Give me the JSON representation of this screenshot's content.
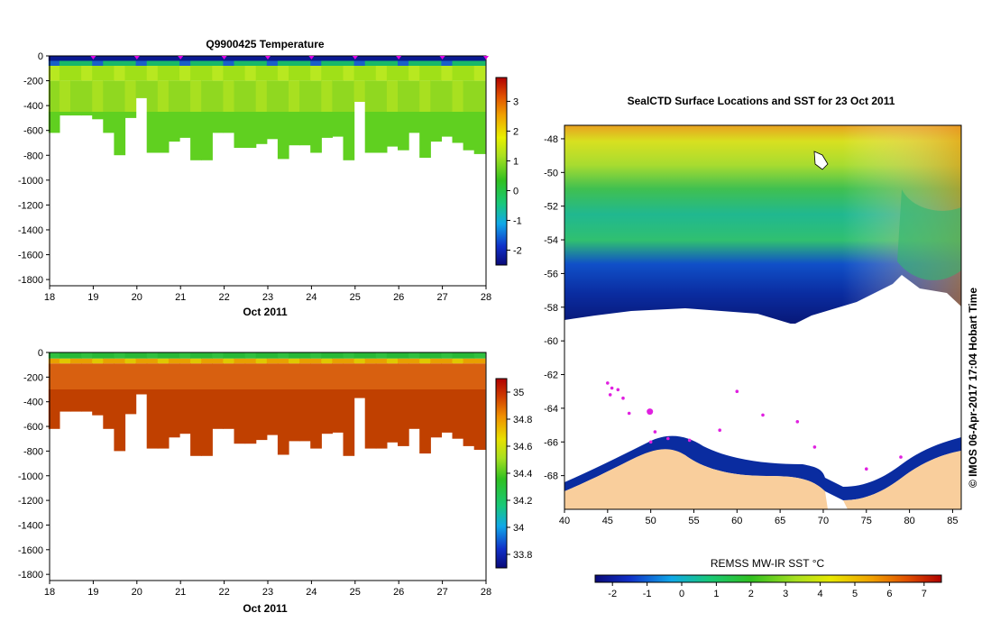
{
  "temperature_panel": {
    "title": "Q9900425  Temperature",
    "xlabel": "Oct 2011",
    "x_ticks": [
      "18",
      "19",
      "20",
      "21",
      "22",
      "23",
      "24",
      "25",
      "26",
      "27",
      "28"
    ],
    "y_ticks": [
      "0",
      "-200",
      "-400",
      "-600",
      "-800",
      "-1000",
      "-1200",
      "-1400",
      "-1600",
      "-1800"
    ],
    "colorbar_ticks": [
      "3",
      "2",
      "1",
      "0",
      "-1",
      "-2"
    ]
  },
  "salinity_panel": {
    "xlabel": "Oct 2011",
    "x_ticks": [
      "18",
      "19",
      "20",
      "21",
      "22",
      "23",
      "24",
      "25",
      "26",
      "27",
      "28"
    ],
    "y_ticks": [
      "0",
      "-200",
      "-400",
      "-600",
      "-800",
      "-1000",
      "-1200",
      "-1400",
      "-1600",
      "-1800"
    ],
    "colorbar_ticks": [
      "35",
      "34.8",
      "34.6",
      "34.4",
      "34.2",
      "34",
      "33.8"
    ]
  },
  "map_panel": {
    "title": "SealCTD Surface Locations and SST for 23 Oct 2011",
    "lat_ticks": [
      "-48",
      "-50",
      "-52",
      "-54",
      "-56",
      "-58",
      "-60",
      "-62",
      "-64",
      "-66",
      "-68"
    ],
    "lon_ticks": [
      "40",
      "45",
      "50",
      "55",
      "60",
      "65",
      "70",
      "75",
      "80",
      "85"
    ],
    "credit": "©  IMOS 06-Apr-2017 17:04 Hobart Time",
    "colorbar_title": "REMSS MW-IR SST °C",
    "colorbar_ticks": [
      "-2",
      "-1",
      "0",
      "1",
      "2",
      "3",
      "4",
      "5",
      "6",
      "7"
    ]
  },
  "chart_data": [
    {
      "type": "heatmap",
      "title": "Q9900425  Temperature",
      "xlabel": "Oct 2011",
      "ylabel": "",
      "xlim": [
        18,
        28
      ],
      "ylim": [
        -1850,
        0
      ],
      "colorbar_range": [
        -2.5,
        3.8
      ],
      "profile_days": [
        18.1,
        18.35,
        18.6,
        18.85,
        19.1,
        19.35,
        19.6,
        19.85,
        20.1,
        20.35,
        20.6,
        20.85,
        21.1,
        21.35,
        21.6,
        21.85,
        22.1,
        22.35,
        22.6,
        22.85,
        23.1,
        23.35,
        23.6,
        23.85,
        24.1,
        24.35,
        24.6,
        24.85,
        25.1,
        25.35,
        25.6,
        25.85,
        26.1,
        26.35,
        26.6,
        26.85,
        27.1,
        27.35,
        27.6,
        27.85
      ],
      "max_depths": [
        -620,
        -480,
        -480,
        -480,
        -510,
        -620,
        -800,
        -500,
        -340,
        -780,
        -780,
        -690,
        -660,
        -840,
        -840,
        -620,
        -620,
        -740,
        -740,
        -710,
        -670,
        -830,
        -720,
        -720,
        -780,
        -660,
        -650,
        -840,
        -370,
        -780,
        -780,
        -730,
        -760,
        -620,
        -820,
        -690,
        -650,
        -700,
        -760,
        -790
      ],
      "surface_value": -2.0,
      "deep_value": 1.2,
      "surface_markers_days": [
        19,
        20,
        21,
        22,
        23,
        24,
        25,
        26,
        27,
        28
      ]
    },
    {
      "type": "heatmap",
      "title": "",
      "xlabel": "Oct 2011",
      "ylabel": "",
      "xlim": [
        18,
        28
      ],
      "ylim": [
        -1850,
        0
      ],
      "colorbar_range": [
        33.7,
        35.1
      ],
      "profile_days": [
        18.1,
        18.35,
        18.6,
        18.85,
        19.1,
        19.35,
        19.6,
        19.85,
        20.1,
        20.35,
        20.6,
        20.85,
        21.1,
        21.35,
        21.6,
        21.85,
        22.1,
        22.35,
        22.6,
        22.85,
        23.1,
        23.35,
        23.6,
        23.85,
        24.1,
        24.35,
        24.6,
        24.85,
        25.1,
        25.35,
        25.6,
        25.85,
        26.1,
        26.35,
        26.6,
        26.85,
        27.1,
        27.35,
        27.6,
        27.85
      ],
      "max_depths": [
        -620,
        -480,
        -480,
        -480,
        -510,
        -620,
        -800,
        -500,
        -340,
        -780,
        -780,
        -690,
        -660,
        -840,
        -840,
        -620,
        -620,
        -740,
        -740,
        -710,
        -670,
        -830,
        -720,
        -720,
        -780,
        -660,
        -650,
        -840,
        -370,
        -780,
        -780,
        -730,
        -760,
        -620,
        -820,
        -690,
        -650,
        -700,
        -760,
        -790
      ],
      "surface_value": 34.3,
      "deep_value": 34.9
    },
    {
      "type": "scatter",
      "title": "SealCTD Surface Locations and SST for 23 Oct 2011",
      "xlabel": "",
      "ylabel": "",
      "xlim": [
        40,
        86
      ],
      "ylim": [
        -70,
        -47
      ],
      "colorbar_title": "REMSS MW-IR SST °C",
      "colorbar_range": [
        -2.5,
        7.5
      ],
      "seal_locations": [
        {
          "lon": 45.0,
          "lat": -62.5
        },
        {
          "lon": 45.5,
          "lat": -62.8
        },
        {
          "lon": 46.2,
          "lat": -62.9
        },
        {
          "lon": 45.3,
          "lat": -63.2
        },
        {
          "lon": 46.8,
          "lat": -63.4
        },
        {
          "lon": 49.9,
          "lat": -64.2
        },
        {
          "lon": 47.5,
          "lat": -64.3
        },
        {
          "lon": 50.5,
          "lat": -65.4
        },
        {
          "lon": 52.0,
          "lat": -65.8
        },
        {
          "lon": 54.5,
          "lat": -65.9
        },
        {
          "lon": 58.0,
          "lat": -65.3
        },
        {
          "lon": 63.0,
          "lat": -64.4
        },
        {
          "lon": 67.0,
          "lat": -64.8
        },
        {
          "lon": 69.0,
          "lat": -66.3
        },
        {
          "lon": 75.0,
          "lat": -67.6
        },
        {
          "lon": 79.0,
          "lat": -66.9
        },
        {
          "lon": 50.0,
          "lat": -66.0
        },
        {
          "lon": 60.0,
          "lat": -63.0
        }
      ]
    }
  ]
}
